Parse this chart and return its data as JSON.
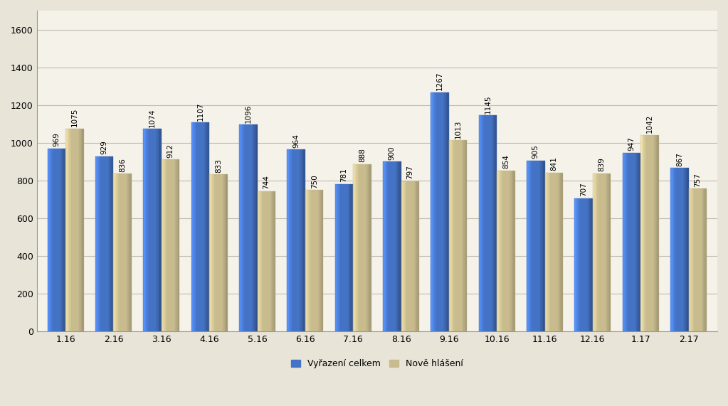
{
  "categories": [
    "1.16",
    "2.16",
    "3.16",
    "4.16",
    "5.16",
    "6.16",
    "7.16",
    "8.16",
    "9.16",
    "10.16",
    "11.16",
    "12.16",
    "1.17",
    "2.17"
  ],
  "vyrazeni": [
    969,
    929,
    1074,
    1107,
    1096,
    964,
    781,
    900,
    1267,
    1145,
    905,
    707,
    947,
    867
  ],
  "nove_hlaseni": [
    1075,
    836,
    912,
    833,
    744,
    750,
    888,
    797,
    1013,
    854,
    841,
    839,
    1042,
    757
  ],
  "bar_color_blue": "#4472C4",
  "bar_color_tan": "#C8BC8E",
  "background_color": "#E8E4D8",
  "plot_bg_color": "#F5F2EA",
  "legend_blue": "Vyřazení celkem",
  "legend_tan": "Nově hlášení",
  "ylim": [
    0,
    1700
  ],
  "yticks": [
    0,
    200,
    400,
    600,
    800,
    1000,
    1200,
    1400,
    1600
  ],
  "label_fontsize": 7.5,
  "tick_fontsize": 9,
  "legend_fontsize": 9,
  "bar_width": 0.38,
  "grid_color": "#C0BBAE",
  "spine_color": "#9B9690"
}
